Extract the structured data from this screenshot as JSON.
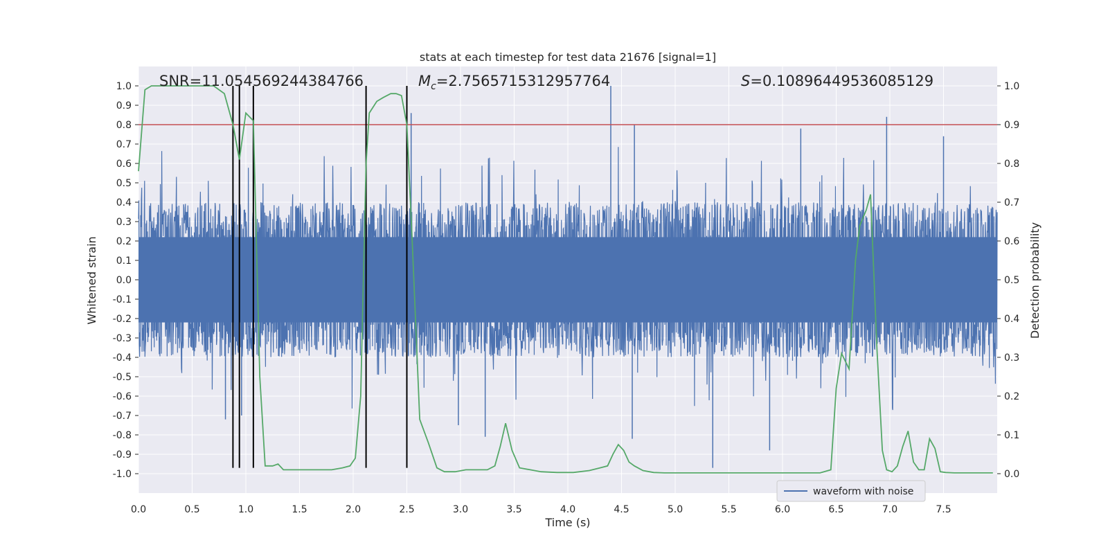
{
  "chart_data": {
    "type": "line",
    "title": "stats at each timestep for test data 21676 [signal=1]",
    "xlabel": "Time (s)",
    "ylabel": "Whitened strain",
    "ylabel_right": "Detection probability",
    "xlim": [
      0.0,
      8.0
    ],
    "ylim": [
      -1.1,
      1.1
    ],
    "ylim_right": [
      -0.05,
      1.05
    ],
    "xticks": [
      0.0,
      0.5,
      1.0,
      1.5,
      2.0,
      2.5,
      3.0,
      3.5,
      4.0,
      4.5,
      5.0,
      5.5,
      6.0,
      6.5,
      7.0,
      7.5
    ],
    "xtick_labels": [
      "0.0",
      "0.5",
      "1.0",
      "1.5",
      "2.0",
      "2.5",
      "3.0",
      "3.5",
      "4.0",
      "4.5",
      "5.0",
      "5.5",
      "6.0",
      "6.5",
      "7.0",
      "7.5"
    ],
    "yticks": [
      1.0,
      0.9,
      0.8,
      0.7,
      0.6,
      0.5,
      0.4,
      0.3,
      0.2,
      0.1,
      0.0,
      -0.1,
      -0.2,
      -0.3,
      -0.4,
      -0.5,
      -0.6,
      -0.7,
      -0.8,
      -0.9,
      -1.0
    ],
    "ytick_labels": [
      "1.0",
      "0.9",
      "0.8",
      "0.7",
      "0.6",
      "0.5",
      "0.4",
      "0.3",
      "0.2",
      "0.1",
      "0.0",
      "-0.1",
      "-0.2",
      "-0.3",
      "-0.4",
      "-0.5",
      "-0.6",
      "-0.7",
      "-0.8",
      "-0.9",
      "-1.0"
    ],
    "yticks_right": [
      1.0,
      0.9,
      0.8,
      0.7,
      0.6,
      0.5,
      0.4,
      0.3,
      0.2,
      0.1,
      0.0
    ],
    "ytick_labels_right": [
      "1.0",
      "0.9",
      "0.8",
      "0.7",
      "0.6",
      "0.5",
      "0.4",
      "0.3",
      "0.2",
      "0.1",
      "0.0"
    ],
    "annotations": {
      "snr": "SNR=11.054569244384766",
      "mc_symbol": "M",
      "mc_subscript": "c",
      "mc_value": "=2.7565715312957764",
      "s_symbol": "S",
      "s_value": "=0.10896449536085129"
    },
    "threshold": {
      "value": 0.8,
      "color": "#c44e52"
    },
    "vertical_lines": [
      0.88,
      0.94,
      1.07,
      2.12,
      2.5
    ],
    "legend": {
      "label": "waveform with noise",
      "location": "lower-right"
    },
    "waveform": {
      "name": "waveform with noise",
      "color": "#4c72b0",
      "duration": 8.0,
      "envelope": 0.4,
      "spikes": [
        {
          "x": 4.4,
          "y": 1.0
        },
        {
          "x": 6.97,
          "y": 0.84
        },
        {
          "x": 2.54,
          "y": 0.86
        },
        {
          "x": 4.62,
          "y": 0.8
        },
        {
          "x": 5.35,
          "y": -0.97
        },
        {
          "x": 5.88,
          "y": -0.88
        },
        {
          "x": 3.23,
          "y": -0.81
        },
        {
          "x": 4.6,
          "y": -0.82
        },
        {
          "x": 6.17,
          "y": 0.78
        },
        {
          "x": 7.5,
          "y": 0.74
        },
        {
          "x": 0.81,
          "y": -0.72
        },
        {
          "x": 0.96,
          "y": -0.7
        },
        {
          "x": 2.98,
          "y": -0.75
        }
      ]
    },
    "detection_probability": {
      "name": "detection probability",
      "color": "#55a868",
      "x": [
        0.0,
        0.06,
        0.12,
        0.2,
        0.3,
        0.4,
        0.5,
        0.6,
        0.7,
        0.75,
        0.8,
        0.88,
        0.94,
        1.0,
        1.07,
        1.13,
        1.18,
        1.25,
        1.3,
        1.35,
        1.42,
        1.5,
        1.6,
        1.7,
        1.8,
        1.9,
        1.97,
        2.02,
        2.07,
        2.12,
        2.15,
        2.22,
        2.28,
        2.35,
        2.4,
        2.45,
        2.5,
        2.55,
        2.62,
        2.7,
        2.78,
        2.85,
        2.95,
        3.05,
        3.15,
        3.25,
        3.32,
        3.37,
        3.42,
        3.48,
        3.55,
        3.65,
        3.75,
        3.9,
        4.05,
        4.2,
        4.3,
        4.37,
        4.42,
        4.47,
        4.52,
        4.57,
        4.62,
        4.7,
        4.8,
        4.9,
        5.0,
        5.2,
        5.5,
        5.8,
        6.0,
        6.2,
        6.35,
        6.45,
        6.5,
        6.55,
        6.62,
        6.68,
        6.72,
        6.78,
        6.82,
        6.88,
        6.93,
        6.97,
        7.02,
        7.07,
        7.12,
        7.17,
        7.22,
        7.27,
        7.32,
        7.37,
        7.42,
        7.47,
        7.52,
        7.6,
        7.7,
        7.8,
        7.96
      ],
      "values": [
        0.78,
        0.99,
        1.0,
        1.0,
        1.0,
        1.0,
        1.0,
        1.0,
        1.0,
        0.99,
        0.98,
        0.9,
        0.81,
        0.93,
        0.91,
        0.25,
        0.02,
        0.02,
        0.025,
        0.01,
        0.01,
        0.01,
        0.01,
        0.01,
        0.01,
        0.015,
        0.02,
        0.04,
        0.2,
        0.8,
        0.93,
        0.96,
        0.97,
        0.98,
        0.98,
        0.975,
        0.9,
        0.6,
        0.14,
        0.08,
        0.015,
        0.005,
        0.005,
        0.01,
        0.01,
        0.01,
        0.02,
        0.07,
        0.13,
        0.06,
        0.015,
        0.01,
        0.005,
        0.003,
        0.003,
        0.008,
        0.015,
        0.02,
        0.05,
        0.075,
        0.06,
        0.03,
        0.02,
        0.008,
        0.003,
        0.002,
        0.002,
        0.002,
        0.002,
        0.002,
        0.002,
        0.002,
        0.002,
        0.01,
        0.22,
        0.31,
        0.27,
        0.55,
        0.64,
        0.68,
        0.72,
        0.32,
        0.06,
        0.01,
        0.005,
        0.02,
        0.07,
        0.11,
        0.03,
        0.01,
        0.01,
        0.09,
        0.065,
        0.005,
        0.003,
        0.002,
        0.002,
        0.002,
        0.002
      ]
    }
  }
}
